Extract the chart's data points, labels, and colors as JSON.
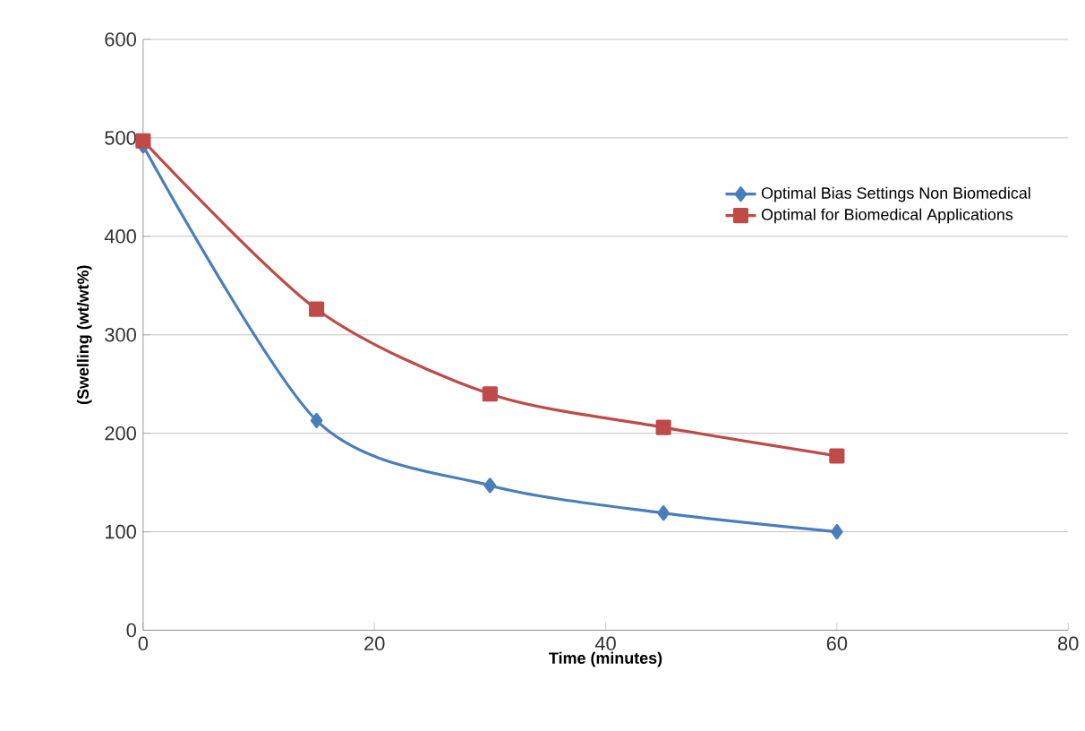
{
  "chart_data": {
    "type": "line",
    "xlabel": "Time (minutes)",
    "ylabel": "(Swelling (wt/wt%)",
    "xlim": [
      0,
      80
    ],
    "xticks": [
      0,
      20,
      40,
      60,
      80
    ],
    "ylim": [
      0,
      600
    ],
    "yticks": [
      0,
      100,
      200,
      300,
      400,
      500,
      600
    ],
    "grid": "y",
    "legend": "right",
    "series": [
      {
        "name": "Optimal Bias Settings Non Biomedical",
        "color": "#4a7ebb",
        "marker": "diamond",
        "x": [
          0,
          15,
          30,
          45,
          60
        ],
        "values": [
          492,
          213,
          147,
          119,
          100
        ]
      },
      {
        "name": "Optimal for Biomedical Applications",
        "color": "#be4b48",
        "marker": "square",
        "x": [
          0,
          15,
          30,
          45,
          60
        ],
        "values": [
          497,
          326,
          240,
          206,
          177
        ]
      }
    ]
  }
}
